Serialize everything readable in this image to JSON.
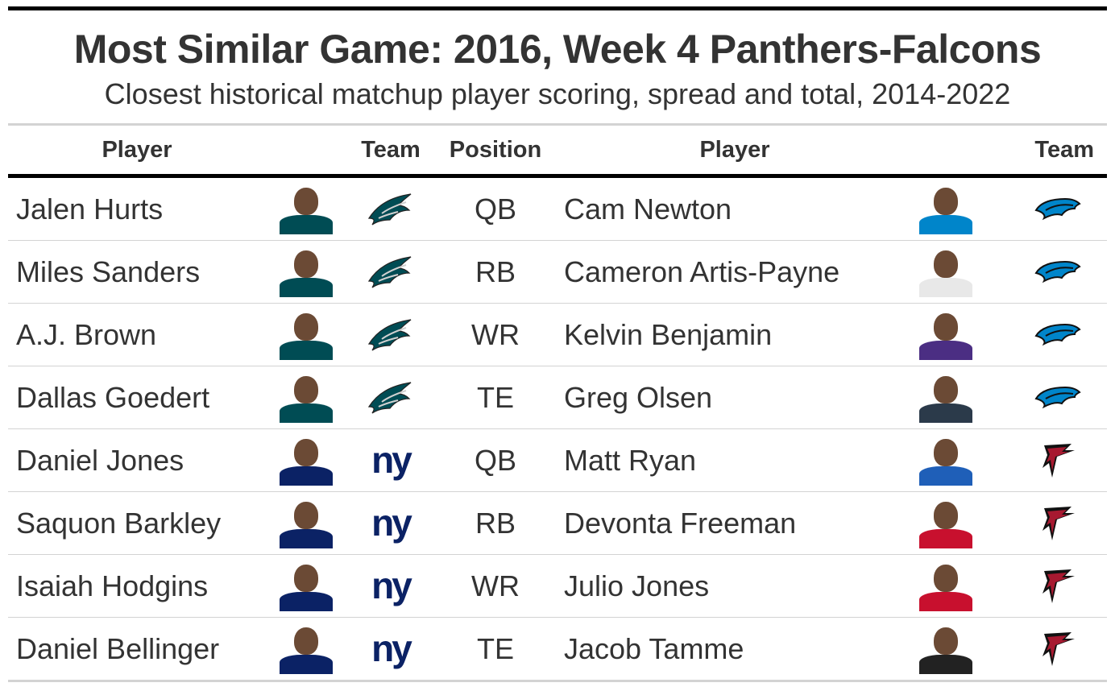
{
  "title": "Most Similar Game: 2016, Week 4 Panthers-Falcons",
  "subtitle": "Closest historical matchup player scoring, spread and total, 2014-2022",
  "headers": {
    "player_left": "Player",
    "team_left": "Team",
    "position": "Position",
    "player_right": "Player",
    "team_right": "Team"
  },
  "colors": {
    "eagles": "#004c54",
    "giants": "#0b2265",
    "panthers": "#0085ca",
    "falcons": "#a71930"
  },
  "rows": [
    {
      "left_player": "Jalen Hurts",
      "left_team_icon": "eagles-logo-icon",
      "position": "QB",
      "right_player": "Cam Newton",
      "right_team_icon": "panthers-logo-icon"
    },
    {
      "left_player": "Miles Sanders",
      "left_team_icon": "eagles-logo-icon",
      "position": "RB",
      "right_player": "Cameron Artis-Payne",
      "right_team_icon": "panthers-logo-icon"
    },
    {
      "left_player": "A.J. Brown",
      "left_team_icon": "eagles-logo-icon",
      "position": "WR",
      "right_player": "Kelvin Benjamin",
      "right_team_icon": "panthers-logo-icon"
    },
    {
      "left_player": "Dallas Goedert",
      "left_team_icon": "eagles-logo-icon",
      "position": "TE",
      "right_player": "Greg Olsen",
      "right_team_icon": "panthers-logo-icon"
    },
    {
      "left_player": "Daniel Jones",
      "left_team_icon": "giants-logo-icon",
      "position": "QB",
      "right_player": "Matt Ryan",
      "right_team_icon": "falcons-logo-icon"
    },
    {
      "left_player": "Saquon Barkley",
      "left_team_icon": "giants-logo-icon",
      "position": "RB",
      "right_player": "Devonta Freeman",
      "right_team_icon": "falcons-logo-icon"
    },
    {
      "left_player": "Isaiah Hodgins",
      "left_team_icon": "giants-logo-icon",
      "position": "WR",
      "right_player": "Julio Jones",
      "right_team_icon": "falcons-logo-icon"
    },
    {
      "left_player": "Daniel Bellinger",
      "left_team_icon": "giants-logo-icon",
      "position": "TE",
      "right_player": "Jacob Tamme",
      "right_team_icon": "falcons-logo-icon"
    }
  ]
}
